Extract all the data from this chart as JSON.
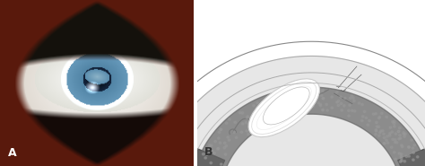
{
  "figure_width": 4.74,
  "figure_height": 1.85,
  "dpi": 100,
  "background_color": "#ffffff",
  "panel_a_label": "A",
  "panel_b_label": "B",
  "label_color": "#ffffff",
  "label_b_color": "#333333",
  "label_fontsize": 9,
  "label_fontweight": "bold",
  "panel_split": 0.455
}
